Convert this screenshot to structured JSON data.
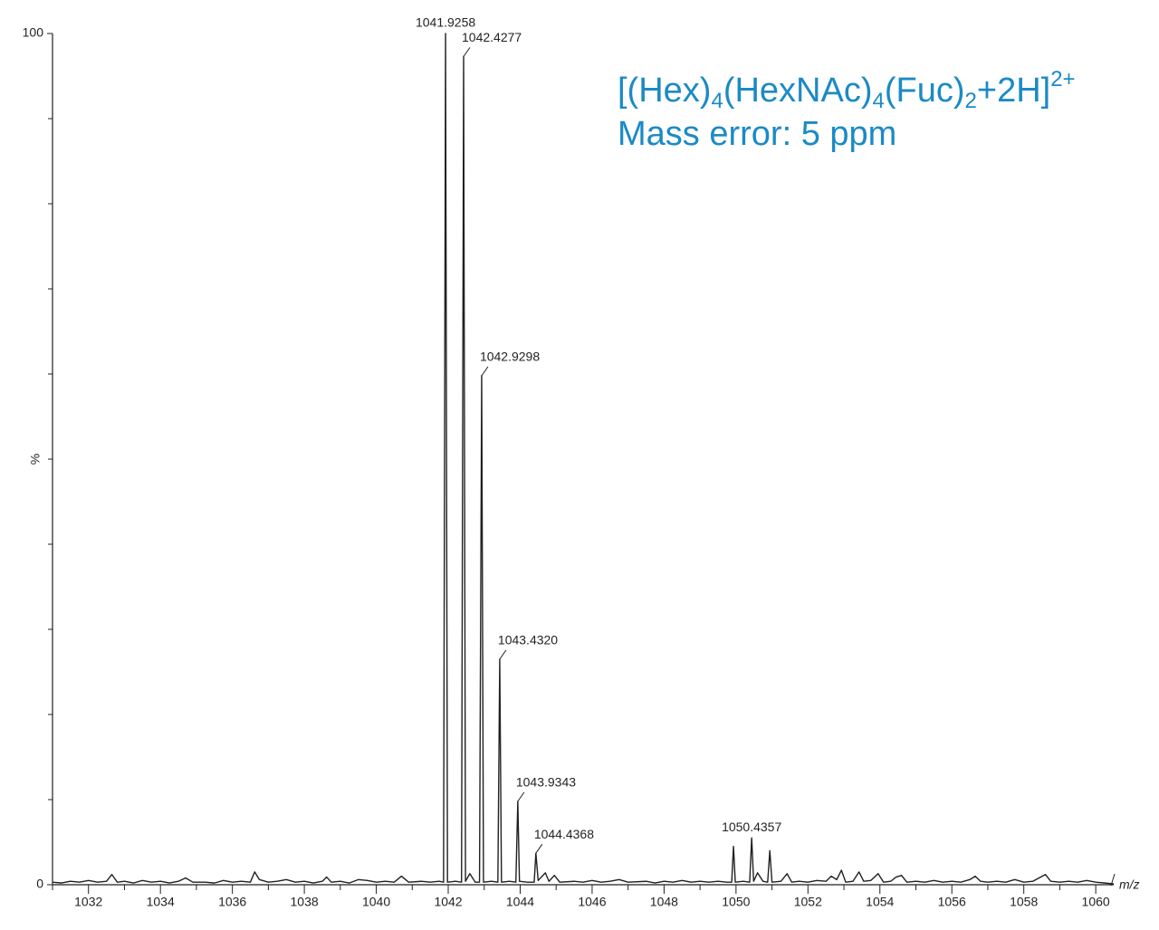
{
  "chart_data": {
    "type": "line",
    "color": "#231f20",
    "x_label": "m/z",
    "y_label": "%",
    "xlim": [
      1031,
      1060.5
    ],
    "ylim": [
      0,
      100
    ],
    "xticks": [
      1032,
      1034,
      1036,
      1038,
      1040,
      1042,
      1044,
      1046,
      1048,
      1050,
      1052,
      1054,
      1056,
      1058,
      1060
    ],
    "xminor_ticks": [
      1031,
      1033,
      1035,
      1037,
      1039,
      1041,
      1043,
      1045,
      1047,
      1049,
      1051,
      1053,
      1055,
      1057,
      1059
    ],
    "yticks": [
      0,
      100
    ],
    "yminor_ticks": [
      10,
      20,
      30,
      40,
      50,
      60,
      70,
      80,
      90
    ],
    "annotation_color": "#1b8ac4",
    "formula": [
      "[(Hex)",
      "4",
      "(HexNAc)",
      "4",
      "(Fuc)",
      "2",
      "+2H]",
      "2+"
    ],
    "mass_error": "Mass error: 5 ppm",
    "peak_labels": [
      {
        "x": 1041.9258,
        "label": "1041.9258"
      },
      {
        "x": 1042.4277,
        "label": "1042.4277"
      },
      {
        "x": 1042.9298,
        "label": "1042.9298"
      },
      {
        "x": 1043.432,
        "label": "1043.4320"
      },
      {
        "x": 1043.9343,
        "label": "1043.9343"
      },
      {
        "x": 1044.4368,
        "label": "1044.4368"
      },
      {
        "x": 1050.4357,
        "label": "1050.4357"
      }
    ],
    "x": [
      1031.0,
      1031.25,
      1031.5,
      1031.75,
      1032.0,
      1032.25,
      1032.5,
      1032.65,
      1032.8,
      1033.0,
      1033.25,
      1033.5,
      1033.75,
      1034.0,
      1034.25,
      1034.5,
      1034.7,
      1034.9,
      1035.25,
      1035.5,
      1035.75,
      1036.0,
      1036.25,
      1036.5,
      1036.62,
      1036.75,
      1037.0,
      1037.25,
      1037.5,
      1037.75,
      1038.0,
      1038.25,
      1038.5,
      1038.62,
      1038.75,
      1039.0,
      1039.25,
      1039.5,
      1039.75,
      1040.0,
      1040.25,
      1040.5,
      1040.7,
      1040.9,
      1041.25,
      1041.5,
      1041.75,
      1041.87,
      1041.9258,
      1041.98,
      1042.2,
      1042.37,
      1042.4277,
      1042.48,
      1042.6,
      1042.75,
      1042.87,
      1042.9298,
      1042.98,
      1043.2,
      1043.38,
      1043.432,
      1043.48,
      1043.7,
      1043.88,
      1043.9343,
      1043.98,
      1044.2,
      1044.39,
      1044.4368,
      1044.5,
      1044.7,
      1044.8,
      1044.95,
      1045.1,
      1045.5,
      1045.75,
      1046.0,
      1046.25,
      1046.5,
      1046.75,
      1047.0,
      1047.5,
      1047.75,
      1048.0,
      1048.25,
      1048.5,
      1048.75,
      1049.0,
      1049.25,
      1049.5,
      1049.75,
      1049.88,
      1049.93,
      1049.98,
      1050.2,
      1050.38,
      1050.4357,
      1050.49,
      1050.6,
      1050.75,
      1050.88,
      1050.94,
      1051.0,
      1051.25,
      1051.42,
      1051.55,
      1051.75,
      1052.0,
      1052.25,
      1052.5,
      1052.65,
      1052.8,
      1052.93,
      1053.05,
      1053.25,
      1053.42,
      1053.55,
      1053.75,
      1053.95,
      1054.1,
      1054.3,
      1054.45,
      1054.6,
      1054.75,
      1055.0,
      1055.25,
      1055.5,
      1055.75,
      1056.0,
      1056.25,
      1056.5,
      1056.65,
      1056.8,
      1057.0,
      1057.25,
      1057.5,
      1057.75,
      1058.0,
      1058.25,
      1058.6,
      1058.75,
      1059.0,
      1059.25,
      1059.5,
      1059.75,
      1060.0,
      1060.25,
      1060.5
    ],
    "values": [
      0.3,
      0.2,
      0.4,
      0.3,
      0.5,
      0.3,
      0.4,
      1.2,
      0.3,
      0.4,
      0.2,
      0.5,
      0.3,
      0.4,
      0.2,
      0.4,
      0.8,
      0.3,
      0.3,
      0.2,
      0.5,
      0.3,
      0.4,
      0.3,
      1.5,
      0.6,
      0.3,
      0.4,
      0.6,
      0.3,
      0.4,
      0.2,
      0.4,
      0.9,
      0.3,
      0.4,
      0.2,
      0.6,
      0.5,
      0.3,
      0.4,
      0.3,
      1.0,
      0.3,
      0.4,
      0.3,
      0.4,
      0.3,
      100,
      0.3,
      0.4,
      0.3,
      97.3,
      0.4,
      1.3,
      0.3,
      0.3,
      59.8,
      0.3,
      0.4,
      0.3,
      26.5,
      0.3,
      0.4,
      0.3,
      9.8,
      0.4,
      0.3,
      0.3,
      3.7,
      0.5,
      1.4,
      0.4,
      1.1,
      0.3,
      0.4,
      0.3,
      0.5,
      0.3,
      0.4,
      0.6,
      0.3,
      0.4,
      0.2,
      0.4,
      0.3,
      0.5,
      0.3,
      0.4,
      0.3,
      0.4,
      0.3,
      0.3,
      4.5,
      0.3,
      0.4,
      0.3,
      5.5,
      0.4,
      1.4,
      0.4,
      0.3,
      4.0,
      0.3,
      0.4,
      1.3,
      0.3,
      0.4,
      0.3,
      0.5,
      0.4,
      1.0,
      0.6,
      1.7,
      0.3,
      0.4,
      1.5,
      0.4,
      0.5,
      1.3,
      0.3,
      0.4,
      0.9,
      1.1,
      0.3,
      0.4,
      0.3,
      0.5,
      0.3,
      0.4,
      0.3,
      0.6,
      1.0,
      0.4,
      0.3,
      0.4,
      0.3,
      0.6,
      0.3,
      0.4,
      1.2,
      0.4,
      0.3,
      0.4,
      0.3,
      0.5,
      0.3,
      0.2,
      0.1
    ]
  }
}
